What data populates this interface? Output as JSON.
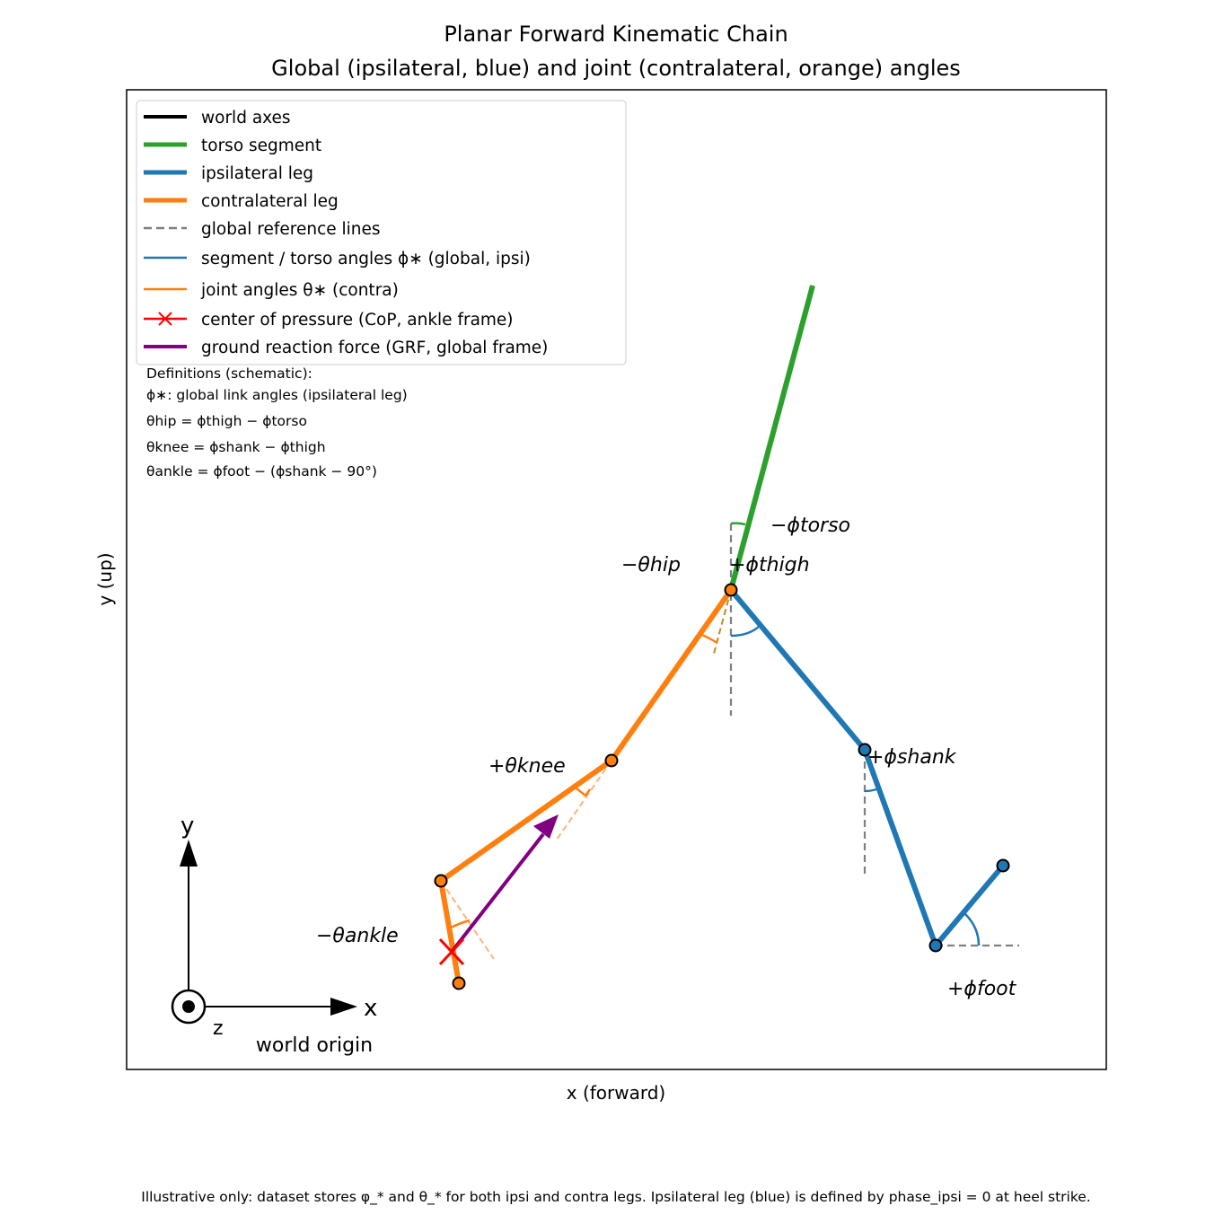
{
  "title": {
    "line1": "Planar Forward Kinematic Chain",
    "line2": "Global (ipsilateral, blue) and joint (contralateral, orange) angles"
  },
  "axes": {
    "xlabel": "x (forward)",
    "ylabel": "y (up)"
  },
  "legend": [
    {
      "label": "world axes",
      "color": "#000000",
      "style": "solid-thick"
    },
    {
      "label": "torso segment",
      "color": "#2ca02c",
      "style": "solid-thick"
    },
    {
      "label": "ipsilateral leg",
      "color": "#1f77b4",
      "style": "solid-thick"
    },
    {
      "label": "contralateral leg",
      "color": "#ff7f0e",
      "style": "solid-thick"
    },
    {
      "label": "global reference lines",
      "color": "#808080",
      "style": "dashed"
    },
    {
      "label": "segment / torso angles ϕ∗ (global, ipsi)",
      "color": "#1f77b4",
      "style": "solid-thin"
    },
    {
      "label": "joint angles θ∗ (contra)",
      "color": "#ff7f0e",
      "style": "solid-thin"
    },
    {
      "label": "center of pressure (CoP, ankle frame)",
      "color": "#ff0000",
      "style": "x-marker"
    },
    {
      "label": "ground reaction force (GRF, global frame)",
      "color": "#800080",
      "style": "solid-thick"
    }
  ],
  "definitions": {
    "header": "Definitions (schematic):",
    "phi": "ϕ∗: global link angles (ipsilateral leg)",
    "hip": "θhip = ϕthigh − ϕtorso",
    "knee": "θknee = ϕshank − ϕthigh",
    "ankle": "θankle = ϕfoot − (ϕshank − 90°)"
  },
  "angle_labels": {
    "torso": "−ϕtorso",
    "hip": "−θhip",
    "thigh": "+ϕthigh",
    "shank": "+ϕshank",
    "foot": "+ϕfoot",
    "knee": "+θknee",
    "ankle": "−θankle"
  },
  "world": {
    "x": "x",
    "y": "y",
    "z": "z",
    "origin": "world origin"
  },
  "footnote": "Illustrative only: dataset stores φ_* and θ_* for both ipsi and contra legs. Ipsilateral leg (blue) is defined by phase_ipsi = 0 at heel strike.",
  "colors": {
    "torso": "#2ca02c",
    "ipsi": "#1f77b4",
    "contra": "#ff7f0e",
    "cop": "#ff0000",
    "grf": "#800080",
    "reference": "#808080"
  }
}
